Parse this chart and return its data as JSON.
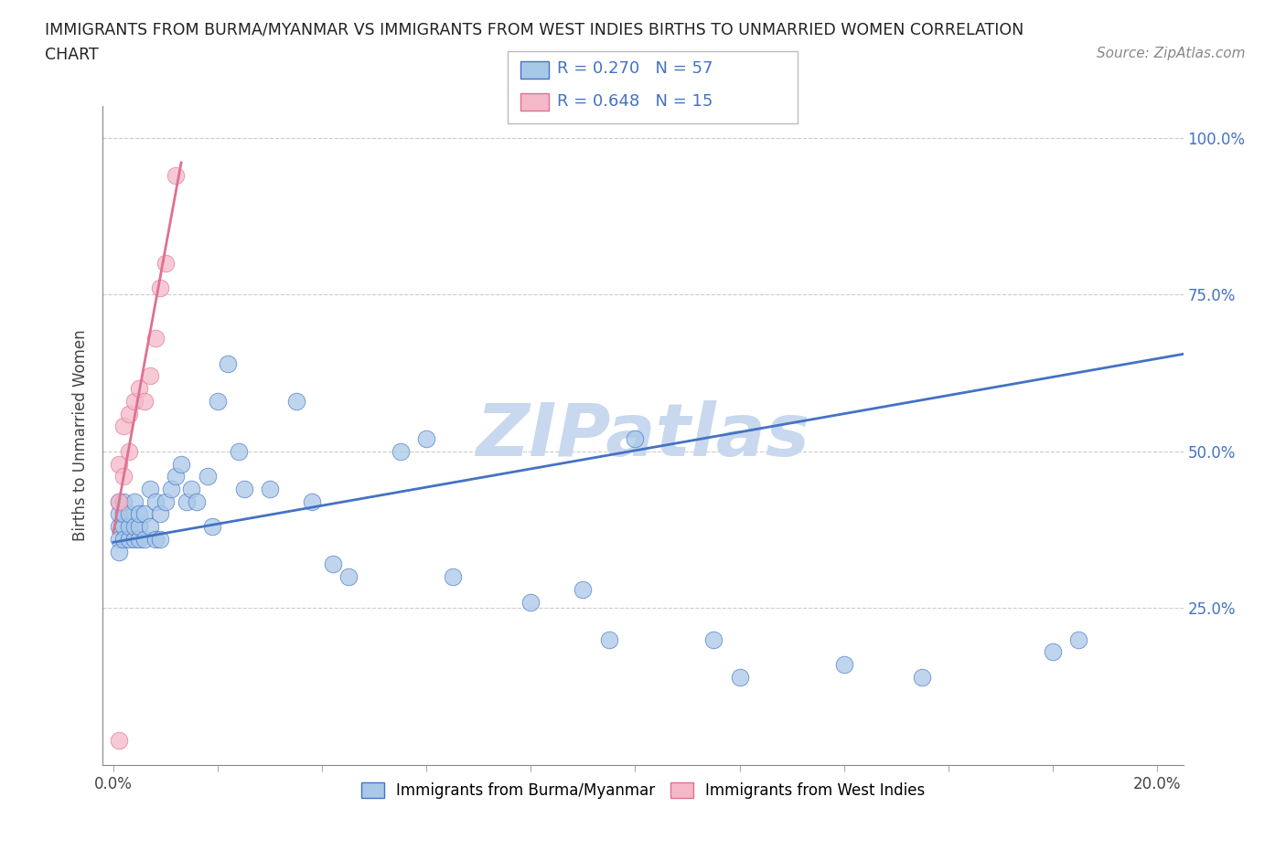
{
  "title_line1": "IMMIGRANTS FROM BURMA/MYANMAR VS IMMIGRANTS FROM WEST INDIES BIRTHS TO UNMARRIED WOMEN CORRELATION",
  "title_line2": "CHART",
  "source_text": "Source: ZipAtlas.com",
  "ylabel": "Births to Unmarried Women",
  "x_min": -0.002,
  "x_max": 0.205,
  "y_min": 0.0,
  "y_max": 1.05,
  "color_blue": "#a8c8e8",
  "color_pink": "#f4b8c8",
  "color_blue_line": "#4472c4",
  "color_pink_line": "#e07090",
  "watermark_text": "ZIPatlas",
  "watermark_color": "#c8d8ee",
  "blue_scatter_x": [
    0.001,
    0.001,
    0.001,
    0.001,
    0.001,
    0.002,
    0.002,
    0.002,
    0.002,
    0.003,
    0.003,
    0.003,
    0.004,
    0.004,
    0.004,
    0.005,
    0.005,
    0.005,
    0.006,
    0.006,
    0.007,
    0.007,
    0.008,
    0.008,
    0.009,
    0.009,
    0.01,
    0.011,
    0.012,
    0.013,
    0.014,
    0.015,
    0.016,
    0.018,
    0.019,
    0.02,
    0.022,
    0.024,
    0.025,
    0.03,
    0.035,
    0.038,
    0.042,
    0.045,
    0.055,
    0.06,
    0.065,
    0.08,
    0.09,
    0.095,
    0.1,
    0.115,
    0.12,
    0.14,
    0.155,
    0.18,
    0.185
  ],
  "blue_scatter_y": [
    0.38,
    0.36,
    0.34,
    0.4,
    0.42,
    0.38,
    0.36,
    0.4,
    0.42,
    0.36,
    0.38,
    0.4,
    0.36,
    0.38,
    0.42,
    0.36,
    0.38,
    0.4,
    0.36,
    0.4,
    0.38,
    0.44,
    0.36,
    0.42,
    0.36,
    0.4,
    0.42,
    0.44,
    0.46,
    0.48,
    0.42,
    0.44,
    0.42,
    0.46,
    0.38,
    0.58,
    0.64,
    0.5,
    0.44,
    0.44,
    0.58,
    0.42,
    0.32,
    0.3,
    0.5,
    0.52,
    0.3,
    0.26,
    0.28,
    0.2,
    0.52,
    0.2,
    0.14,
    0.16,
    0.14,
    0.18,
    0.2
  ],
  "pink_scatter_x": [
    0.001,
    0.001,
    0.001,
    0.002,
    0.002,
    0.003,
    0.003,
    0.004,
    0.005,
    0.006,
    0.007,
    0.008,
    0.009,
    0.01,
    0.012
  ],
  "pink_scatter_y": [
    0.42,
    0.48,
    0.04,
    0.46,
    0.54,
    0.5,
    0.56,
    0.58,
    0.6,
    0.58,
    0.62,
    0.68,
    0.76,
    0.8,
    0.94
  ],
  "blue_line_x0": 0.0,
  "blue_line_x1": 0.205,
  "blue_line_y0": 0.355,
  "blue_line_y1": 0.655,
  "pink_line_x0": 0.0,
  "pink_line_x1": 0.013,
  "pink_line_y0": 0.37,
  "pink_line_y1": 0.96
}
